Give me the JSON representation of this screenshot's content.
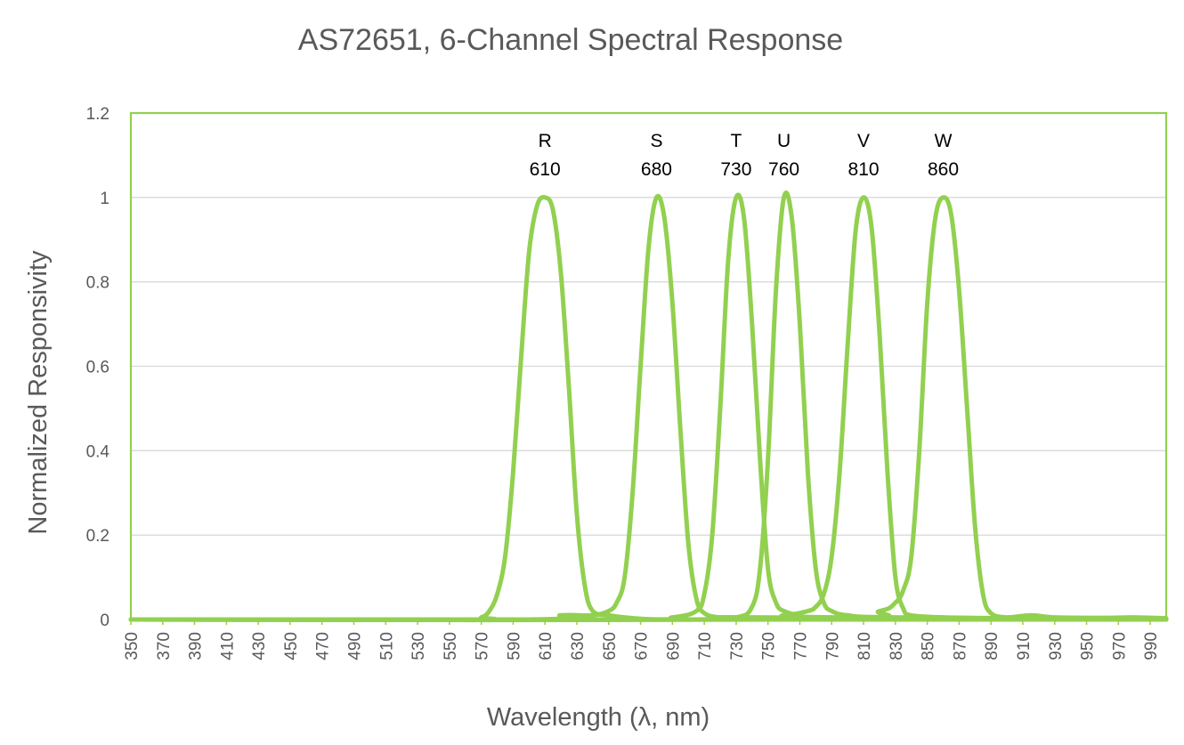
{
  "chart_data": {
    "type": "line",
    "title": "AS72651, 6-Channel Spectral Response",
    "xlabel": "Wavelength (λ, nm)",
    "ylabel": "Normalized Responsivity",
    "xlim": [
      350,
      1000
    ],
    "ylim": [
      0,
      1.2
    ],
    "x_tick_labels": [
      "350",
      "370",
      "390",
      "410",
      "430",
      "450",
      "470",
      "490",
      "510",
      "530",
      "550",
      "570",
      "590",
      "610",
      "630",
      "650",
      "670",
      "690",
      "710",
      "730",
      "750",
      "770",
      "790",
      "810",
      "830",
      "850",
      "870",
      "890",
      "910",
      "930",
      "950",
      "970",
      "990"
    ],
    "y_tick_labels": [
      "0",
      "0.2",
      "0.4",
      "0.6",
      "0.8",
      "1",
      "1.2"
    ],
    "grid": true,
    "legend": "none",
    "line_color": "#92d050",
    "plot_border_color": "#92d050",
    "series": [
      {
        "name": "R",
        "center": "610",
        "x": [
          350,
          560,
          570,
          575,
          580,
          585,
          590,
          595,
          600,
          605,
          610,
          615,
          620,
          625,
          630,
          635,
          640,
          650,
          660,
          680,
          720,
          1000
        ],
        "y": [
          0,
          0,
          0.005,
          0.02,
          0.06,
          0.15,
          0.35,
          0.62,
          0.87,
          0.98,
          1.0,
          0.97,
          0.82,
          0.55,
          0.25,
          0.08,
          0.02,
          0.01,
          0.005,
          0,
          0,
          0
        ]
      },
      {
        "name": "S",
        "center": "680",
        "x": [
          350,
          600,
          620,
          640,
          650,
          655,
          660,
          665,
          670,
          675,
          680,
          685,
          690,
          695,
          700,
          705,
          710,
          720,
          740,
          1000
        ],
        "y": [
          0,
          0,
          0.01,
          0.01,
          0.02,
          0.04,
          0.1,
          0.3,
          0.6,
          0.88,
          1.0,
          0.95,
          0.75,
          0.45,
          0.18,
          0.05,
          0.015,
          0.005,
          0.005,
          0
        ]
      },
      {
        "name": "T",
        "center": "730",
        "x": [
          350,
          660,
          690,
          705,
          710,
          715,
          720,
          725,
          730,
          735,
          740,
          745,
          750,
          755,
          760,
          770,
          790,
          1000
        ],
        "y": [
          0,
          0,
          0.005,
          0.02,
          0.06,
          0.2,
          0.5,
          0.85,
          1.0,
          0.95,
          0.7,
          0.38,
          0.12,
          0.04,
          0.02,
          0.01,
          0.005,
          0
        ]
      },
      {
        "name": "U",
        "center": "760",
        "x": [
          350,
          700,
          730,
          740,
          745,
          750,
          755,
          760,
          765,
          770,
          775,
          780,
          785,
          790,
          800,
          830,
          1000
        ],
        "y": [
          0,
          0,
          0.005,
          0.03,
          0.12,
          0.38,
          0.78,
          1.0,
          0.95,
          0.7,
          0.35,
          0.12,
          0.04,
          0.02,
          0.01,
          0.005,
          0
        ]
      },
      {
        "name": "V",
        "center": "810",
        "x": [
          350,
          720,
          760,
          775,
          780,
          785,
          790,
          795,
          800,
          805,
          810,
          815,
          820,
          825,
          830,
          835,
          840,
          860,
          900,
          1000
        ],
        "y": [
          0,
          0,
          0.01,
          0.02,
          0.03,
          0.06,
          0.15,
          0.35,
          0.65,
          0.92,
          1.0,
          0.93,
          0.68,
          0.35,
          0.1,
          0.025,
          0.01,
          0.005,
          0.003,
          0
        ]
      },
      {
        "name": "W",
        "center": "860",
        "x": [
          350,
          780,
          820,
          830,
          835,
          840,
          845,
          850,
          855,
          860,
          865,
          870,
          875,
          880,
          885,
          890,
          900,
          915,
          930,
          960,
          980,
          1000
        ],
        "y": [
          0,
          0,
          0.02,
          0.04,
          0.07,
          0.15,
          0.4,
          0.75,
          0.95,
          1.0,
          0.96,
          0.78,
          0.5,
          0.22,
          0.06,
          0.015,
          0.005,
          0.01,
          0.005,
          0.004,
          0.005,
          0.003
        ]
      }
    ]
  }
}
